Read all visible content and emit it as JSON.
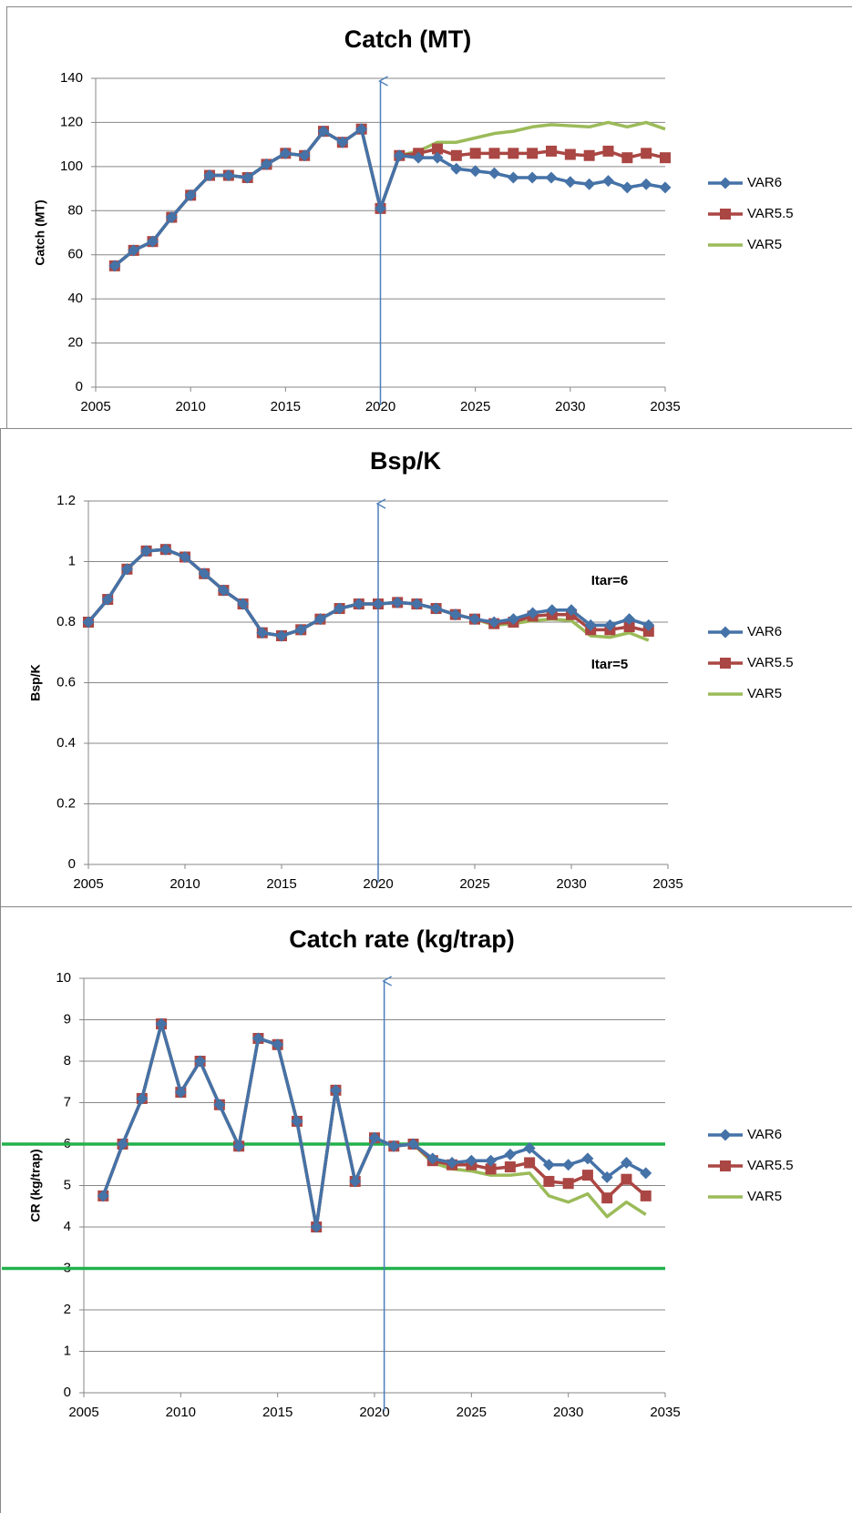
{
  "chart_data": [
    {
      "type": "line",
      "title": "Catch (MT)",
      "y_label": "Catch (MT)",
      "x": [
        2006,
        2007,
        2008,
        2009,
        2010,
        2011,
        2012,
        2013,
        2014,
        2015,
        2016,
        2017,
        2018,
        2019,
        2020,
        2021,
        2022,
        2023,
        2024,
        2025,
        2026,
        2027,
        2028,
        2029,
        2030,
        2031,
        2032,
        2033,
        2034,
        2035
      ],
      "xlim": [
        2005,
        2035
      ],
      "xticks": [
        2005,
        2010,
        2015,
        2020,
        2025,
        2030,
        2035
      ],
      "ylim": [
        0,
        140
      ],
      "yticks": [
        0,
        20,
        40,
        60,
        80,
        100,
        120,
        140
      ],
      "grid": true,
      "arrow_x": 2020,
      "series": [
        {
          "name": "VAR6",
          "color": "#4572a7",
          "marker": "diamond",
          "values": [
            55,
            62,
            66,
            77,
            87,
            96,
            96,
            95,
            101,
            106,
            105,
            116,
            111,
            117,
            81,
            105,
            104,
            104,
            99,
            98,
            97,
            95,
            95,
            95,
            93,
            92,
            93.5,
            90.5,
            92,
            90.5
          ]
        },
        {
          "name": "VAR5.5",
          "color": "#aa4643",
          "marker": "square",
          "values": [
            55,
            62,
            66,
            77,
            87,
            96,
            96,
            95,
            101,
            106,
            105,
            116,
            111,
            117,
            81,
            105,
            106,
            108,
            105,
            106,
            106,
            106,
            106,
            107,
            105.5,
            105,
            107,
            104,
            106,
            104
          ]
        },
        {
          "name": "VAR5",
          "color": "#9bbb59",
          "values": [
            55,
            62,
            66,
            77,
            87,
            96,
            96,
            95,
            101,
            106,
            105,
            116,
            111,
            117,
            81,
            105,
            107,
            111,
            111,
            113,
            115,
            116,
            118,
            119,
            118.5,
            118,
            120,
            118,
            120,
            117
          ]
        }
      ]
    },
    {
      "type": "line",
      "title": "Bsp/K",
      "y_label": "Bsp/K",
      "x": [
        2005,
        2006,
        2007,
        2008,
        2009,
        2010,
        2011,
        2012,
        2013,
        2014,
        2015,
        2016,
        2017,
        2018,
        2019,
        2020,
        2021,
        2022,
        2023,
        2024,
        2025,
        2026,
        2027,
        2028,
        2029,
        2030,
        2031,
        2032,
        2033,
        2034
      ],
      "xlim": [
        2005,
        2035
      ],
      "xticks": [
        2005,
        2010,
        2015,
        2020,
        2025,
        2030,
        2035
      ],
      "ylim": [
        0,
        1.2
      ],
      "yticks": [
        0,
        0.2,
        0.4,
        0.6,
        0.8,
        1,
        1.2
      ],
      "grid": true,
      "arrow_x": 2020,
      "annotations": [
        "Itar=6",
        "Itar=5"
      ],
      "series": [
        {
          "name": "VAR6",
          "color": "#4572a7",
          "marker": "diamond",
          "values": [
            0.8,
            0.875,
            0.975,
            1.035,
            1.04,
            1.015,
            0.96,
            0.905,
            0.86,
            0.765,
            0.755,
            0.775,
            0.81,
            0.845,
            0.86,
            0.86,
            0.865,
            0.86,
            0.845,
            0.825,
            0.81,
            0.8,
            0.81,
            0.83,
            0.84,
            0.84,
            0.79,
            0.79,
            0.81,
            0.79
          ]
        },
        {
          "name": "VAR5.5",
          "color": "#aa4643",
          "marker": "square",
          "values": [
            0.8,
            0.875,
            0.975,
            1.035,
            1.04,
            1.015,
            0.96,
            0.905,
            0.86,
            0.765,
            0.755,
            0.775,
            0.81,
            0.845,
            0.86,
            0.86,
            0.865,
            0.86,
            0.845,
            0.825,
            0.81,
            0.795,
            0.8,
            0.82,
            0.825,
            0.825,
            0.775,
            0.775,
            0.785,
            0.77
          ]
        },
        {
          "name": "VAR5",
          "color": "#9bbb59",
          "values": [
            0.8,
            0.875,
            0.975,
            1.035,
            1.04,
            1.015,
            0.96,
            0.905,
            0.86,
            0.765,
            0.755,
            0.775,
            0.81,
            0.845,
            0.86,
            0.86,
            0.865,
            0.86,
            0.845,
            0.825,
            0.81,
            0.79,
            0.795,
            0.805,
            0.81,
            0.805,
            0.755,
            0.75,
            0.765,
            0.74
          ]
        }
      ]
    },
    {
      "type": "line",
      "title": "Catch rate (kg/trap)",
      "y_label": "CR (kg/trap)",
      "x": [
        2006,
        2007,
        2008,
        2009,
        2010,
        2011,
        2012,
        2013,
        2014,
        2015,
        2016,
        2017,
        2018,
        2019,
        2020,
        2021,
        2022,
        2023,
        2024,
        2025,
        2026,
        2027,
        2028,
        2029,
        2030,
        2031,
        2032,
        2033,
        2034
      ],
      "xlim": [
        2005,
        2035
      ],
      "xticks": [
        2005,
        2010,
        2015,
        2020,
        2025,
        2030,
        2035
      ],
      "ylim": [
        0,
        10
      ],
      "yticks": [
        0,
        1,
        2,
        3,
        4,
        5,
        6,
        7,
        8,
        9,
        10
      ],
      "grid": true,
      "arrow_x": 2020.5,
      "hlines": [
        6,
        3
      ],
      "hline_color": "#22b14c",
      "series": [
        {
          "name": "VAR6",
          "color": "#4572a7",
          "marker": "diamond",
          "values": [
            4.75,
            6.0,
            7.1,
            8.9,
            7.25,
            8.0,
            6.95,
            5.95,
            8.55,
            8.4,
            6.55,
            4.0,
            7.3,
            5.1,
            6.15,
            5.95,
            6.0,
            5.65,
            5.55,
            5.6,
            5.6,
            5.75,
            5.9,
            5.5,
            5.5,
            5.65,
            5.2,
            5.55,
            5.3
          ]
        },
        {
          "name": "VAR5.5",
          "color": "#aa4643",
          "marker": "square",
          "values": [
            4.75,
            6.0,
            7.1,
            8.9,
            7.25,
            8.0,
            6.95,
            5.95,
            8.55,
            8.4,
            6.55,
            4.0,
            7.3,
            5.1,
            6.15,
            5.95,
            6.0,
            5.6,
            5.5,
            5.5,
            5.4,
            5.45,
            5.55,
            5.1,
            5.05,
            5.25,
            4.7,
            5.15,
            4.75
          ]
        },
        {
          "name": "VAR5",
          "color": "#9bbb59",
          "values": [
            4.75,
            6.0,
            7.1,
            8.9,
            7.25,
            8.0,
            6.95,
            5.95,
            8.55,
            8.4,
            6.55,
            4.0,
            7.3,
            5.1,
            6.15,
            5.95,
            6.0,
            5.55,
            5.4,
            5.35,
            5.25,
            5.25,
            5.3,
            4.75,
            4.6,
            4.8,
            4.25,
            4.6,
            4.3
          ]
        }
      ]
    }
  ]
}
